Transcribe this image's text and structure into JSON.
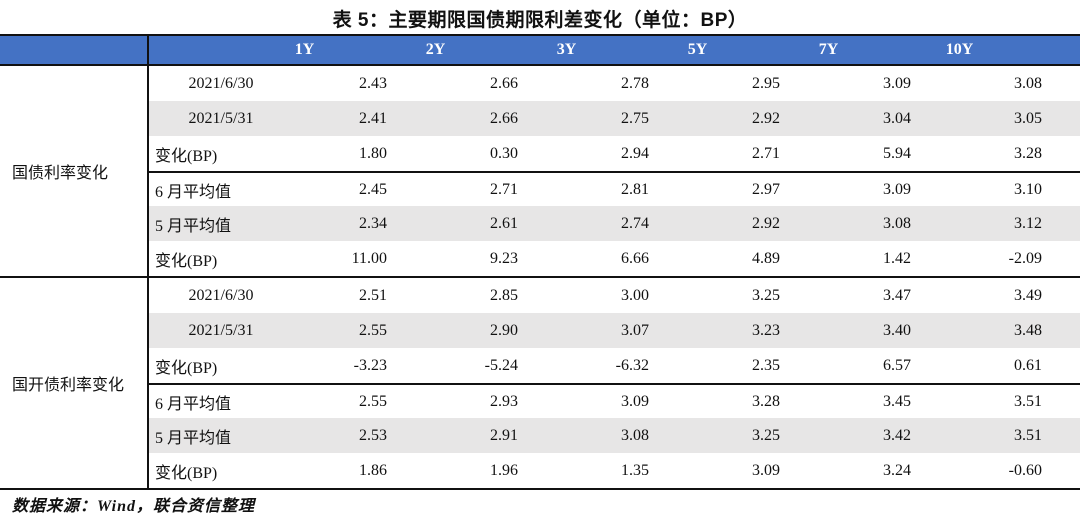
{
  "title": "表 5：主要期限国债期限利差变化（单位：BP）",
  "header": {
    "columns": [
      "1Y",
      "2Y",
      "3Y",
      "5Y",
      "7Y",
      "10Y"
    ]
  },
  "table": {
    "groups": [
      {
        "label": "国债利率变化",
        "rows": [
          {
            "label": "2021/6/30",
            "type": "date",
            "values": [
              "2.43",
              "2.66",
              "2.78",
              "2.95",
              "3.09",
              "3.08"
            ]
          },
          {
            "label": "2021/5/31",
            "type": "date",
            "values": [
              "2.41",
              "2.66",
              "2.75",
              "2.92",
              "3.04",
              "3.05"
            ]
          },
          {
            "label": "变化(BP)",
            "type": "text",
            "values": [
              "1.80",
              "0.30",
              "2.94",
              "2.71",
              "5.94",
              "3.28"
            ]
          },
          {
            "label": "6 月平均值",
            "type": "text",
            "values": [
              "2.45",
              "2.71",
              "2.81",
              "2.97",
              "3.09",
              "3.10"
            ]
          },
          {
            "label": "5 月平均值",
            "type": "text",
            "values": [
              "2.34",
              "2.61",
              "2.74",
              "2.92",
              "3.08",
              "3.12"
            ]
          },
          {
            "label": "变化(BP)",
            "type": "text",
            "values": [
              "11.00",
              "9.23",
              "6.66",
              "4.89",
              "1.42",
              "-2.09"
            ]
          }
        ]
      },
      {
        "label": "国开债利率变化",
        "rows": [
          {
            "label": "2021/6/30",
            "type": "date",
            "values": [
              "2.51",
              "2.85",
              "3.00",
              "3.25",
              "3.47",
              "3.49"
            ]
          },
          {
            "label": "2021/5/31",
            "type": "date",
            "values": [
              "2.55",
              "2.90",
              "3.07",
              "3.23",
              "3.40",
              "3.48"
            ]
          },
          {
            "label": "变化(BP)",
            "type": "text",
            "values": [
              "-3.23",
              "-5.24",
              "-6.32",
              "2.35",
              "6.57",
              "0.61"
            ]
          },
          {
            "label": "6 月平均值",
            "type": "text",
            "values": [
              "2.55",
              "2.93",
              "3.09",
              "3.28",
              "3.45",
              "3.51"
            ]
          },
          {
            "label": "5 月平均值",
            "type": "text",
            "values": [
              "2.53",
              "2.91",
              "3.08",
              "3.25",
              "3.42",
              "3.51"
            ]
          },
          {
            "label": "变化(BP)",
            "type": "text",
            "values": [
              "1.86",
              "1.96",
              "1.35",
              "3.09",
              "3.24",
              "-0.60"
            ]
          }
        ]
      }
    ]
  },
  "footer": {
    "source": "数据来源：Wind，联合资信整理"
  },
  "colors": {
    "header_bg": "#4472C4",
    "stripe_bg": "#E7E6E6",
    "border": "#111111",
    "header_text": "#FFFFFF"
  }
}
